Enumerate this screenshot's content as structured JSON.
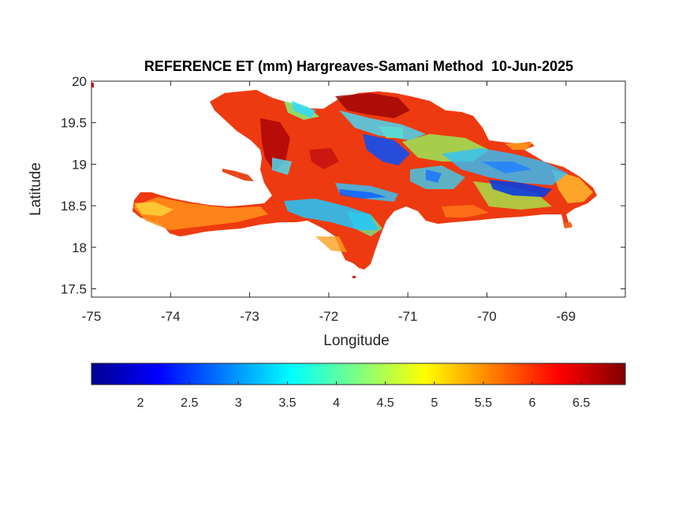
{
  "title": "REFERENCE ET (mm) Hargreaves-Samani Method  10-Jun-2025",
  "map": {
    "xlabel": "Longitude",
    "ylabel": "Latitude",
    "xlim": [
      -75,
      -68.25
    ],
    "ylim": [
      17.4,
      20
    ],
    "xticks": [
      "-75",
      "-74",
      "-73",
      "-72",
      "-71",
      "-70",
      "-69"
    ],
    "yticks": [
      "17.5",
      "18",
      "18.5",
      "19",
      "19.5",
      "20"
    ]
  },
  "colorbar": {
    "colormap": "jet",
    "range": [
      1.5,
      6.95
    ],
    "ticks": [
      "2",
      "2.5",
      "3",
      "3.5",
      "4",
      "4.5",
      "5",
      "5.5",
      "6",
      "6.5"
    ]
  },
  "colors": {
    "low": "#00008f",
    "mid": "#ffff00",
    "high": "#800000"
  }
}
